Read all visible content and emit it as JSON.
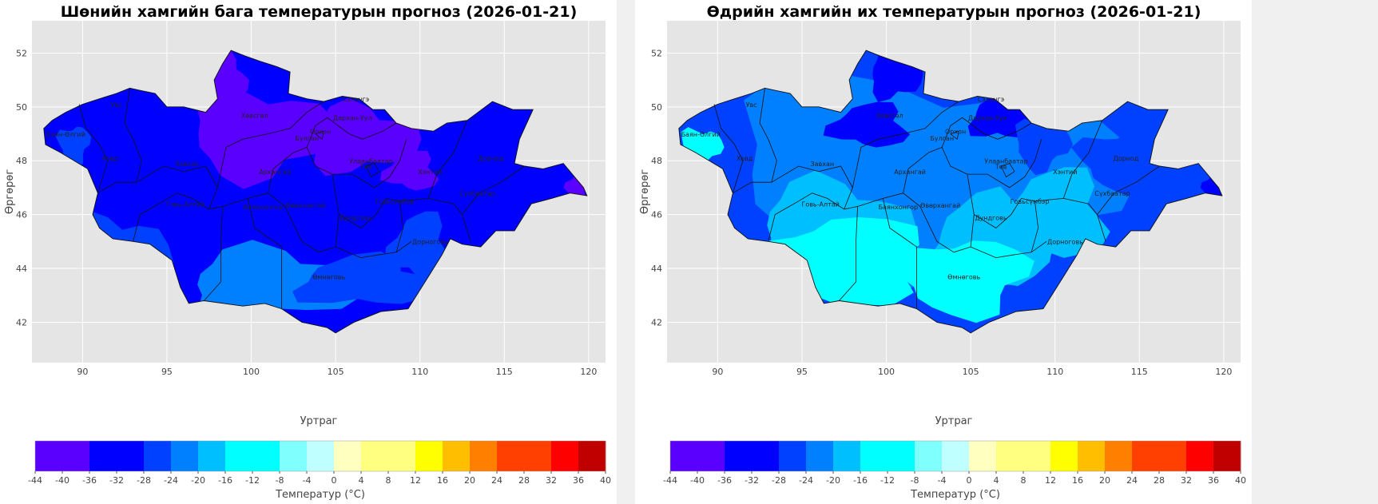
{
  "maps": [
    {
      "title": "Шөнийн хамгийн бага температурын прогноз (2026-01-21)",
      "xlabel": "Уртраг",
      "ylabel": "Өргөрөг",
      "type": "min",
      "province_labels": [
        "Увс",
        "Баян-Өлгий",
        "Ховд",
        "Завхан",
        "Говь-Алтай",
        "Хөвсгөл",
        "Архангай",
        "Баянхонгор",
        "Өвөрхангай",
        "Булган",
        "Орхон",
        "Дархан-Уул",
        "Сэлэнгэ",
        "Улаанбаатар",
        "Төв",
        "Хэнтий",
        "Дорнод",
        "Сүхбаатар",
        "Говьсүмбэр",
        "Дундговь",
        "Дорноговь",
        "Өмнөговь"
      ]
    },
    {
      "title": "Өдрийн хамгийн их температурын прогноз (2026-01-21)",
      "xlabel": "Уртраг",
      "ylabel": "Өргөрөг",
      "type": "max",
      "province_labels": [
        "Увс",
        "Баян-Өлгий",
        "Ховд",
        "Завхан",
        "Говь-Алтай",
        "Хөвсгөл",
        "Архангай",
        "Баянхонгор",
        "Өвөрхангай",
        "Булган",
        "Орхон",
        "Дархан-Уул",
        "Сэлэнгэ",
        "Улаанбаатар",
        "Төв",
        "Хэнтий",
        "Дорнод",
        "Сүхбаатар",
        "Говьсүмбэр",
        "Дундговь",
        "Дорноговь",
        "Өмнөговь"
      ]
    }
  ],
  "axes": {
    "xticks": [
      90,
      95,
      100,
      105,
      110,
      115,
      120
    ],
    "yticks": [
      42,
      44,
      46,
      48,
      50,
      52
    ],
    "xlim": [
      87,
      121
    ],
    "ylim": [
      40.5,
      53.2
    ]
  },
  "colorbar": {
    "label": "Температур (°C)",
    "ticks": [
      -44,
      -40,
      -36,
      -32,
      -28,
      -24,
      -20,
      -16,
      -12,
      -8,
      -4,
      0,
      4,
      8,
      12,
      16,
      20,
      24,
      28,
      32,
      36,
      40
    ],
    "levels": [
      -44,
      -36,
      -28,
      -24,
      -20,
      -16,
      -8,
      -4,
      0,
      4,
      12,
      16,
      20,
      24,
      32,
      36,
      40
    ],
    "colors": [
      "#5a00ff",
      "#0000ff",
      "#0040ff",
      "#0080ff",
      "#00bfff",
      "#00ffff",
      "#80ffff",
      "#bfffff",
      "#ffffbf",
      "#ffff80",
      "#ffff00",
      "#ffbf00",
      "#ff8000",
      "#ff4000",
      "#ff0000",
      "#c00000"
    ]
  }
}
